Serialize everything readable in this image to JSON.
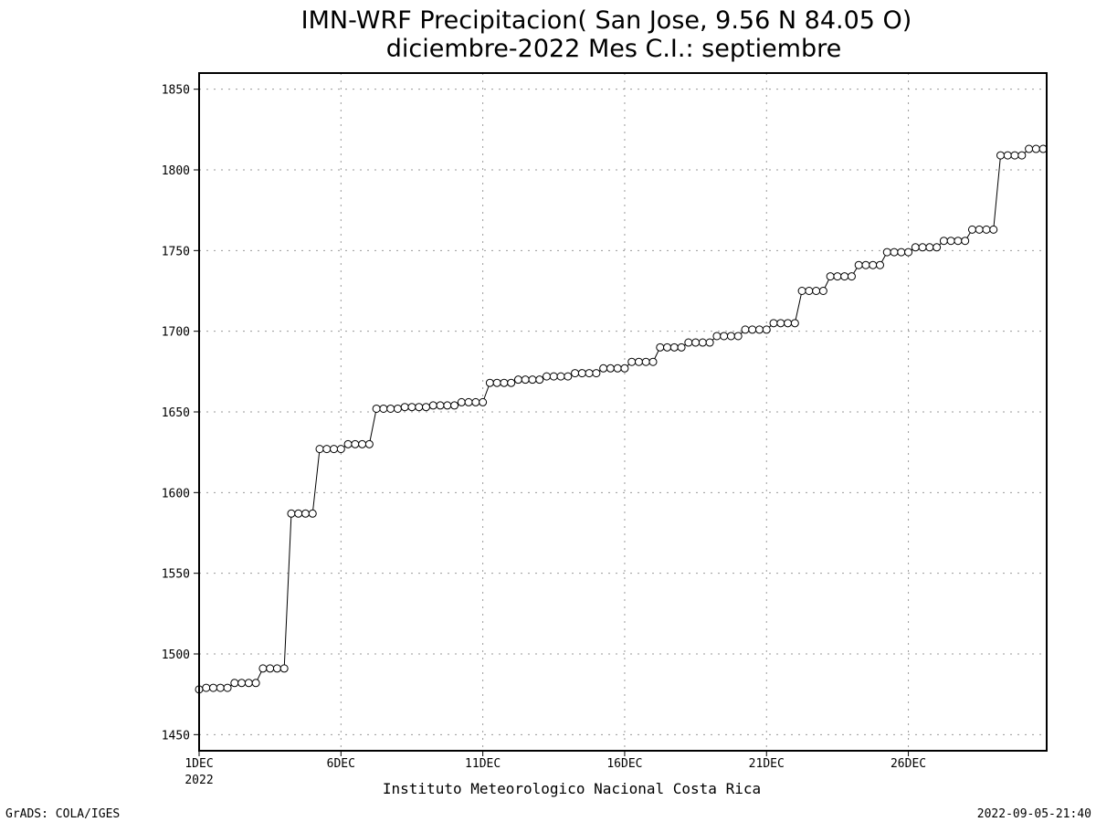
{
  "chart_data": {
    "type": "line",
    "title": "IMN-WRF  Precipitacion( San Jose, 9.56  N 84.05  O)",
    "subtitle": "diciembre-2022 Mes C.I.: septiembre",
    "xlabel": "",
    "ylabel": "",
    "x_tick_labels": [
      "1DEC",
      "6DEC",
      "11DEC",
      "16DEC",
      "21DEC",
      "26DEC"
    ],
    "x_year_label": "2022",
    "x_tick_days": [
      1,
      6,
      11,
      16,
      21,
      26
    ],
    "xlim": [
      1,
      30.875
    ],
    "y_ticks": [
      1450,
      1500,
      1550,
      1600,
      1650,
      1700,
      1750,
      1800,
      1850
    ],
    "ylim": [
      1440,
      1860
    ],
    "grid": true,
    "marker": "open-circle",
    "line_color": "#000000",
    "series": [
      {
        "x_start_day": 1,
        "x_step_hours": 6,
        "values": [
          1478,
          1479,
          1479,
          1479,
          1479,
          1482,
          1482,
          1482,
          1482,
          1491,
          1491,
          1491,
          1491,
          1587,
          1587,
          1587,
          1587,
          1627,
          1627,
          1627,
          1627,
          1630,
          1630,
          1630,
          1630,
          1652,
          1652,
          1652,
          1652,
          1653,
          1653,
          1653,
          1653,
          1654,
          1654,
          1654,
          1654,
          1656,
          1656,
          1656,
          1656,
          1668,
          1668,
          1668,
          1668,
          1670,
          1670,
          1670,
          1670,
          1672,
          1672,
          1672,
          1672,
          1674,
          1674,
          1674,
          1674,
          1677,
          1677,
          1677,
          1677,
          1681,
          1681,
          1681,
          1681,
          1690,
          1690,
          1690,
          1690,
          1693,
          1693,
          1693,
          1693,
          1697,
          1697,
          1697,
          1697,
          1701,
          1701,
          1701,
          1701,
          1705,
          1705,
          1705,
          1705,
          1725,
          1725,
          1725,
          1725,
          1734,
          1734,
          1734,
          1734,
          1741,
          1741,
          1741,
          1741,
          1749,
          1749,
          1749,
          1749,
          1752,
          1752,
          1752,
          1752,
          1756,
          1756,
          1756,
          1756,
          1763,
          1763,
          1763,
          1763,
          1809,
          1809,
          1809,
          1809,
          1813,
          1813,
          1813
        ]
      }
    ]
  },
  "footer": {
    "center": "Instituto Meteorologico Nacional Costa Rica",
    "left": "GrADS: COLA/IGES",
    "right": "2022-09-05-21:40"
  }
}
